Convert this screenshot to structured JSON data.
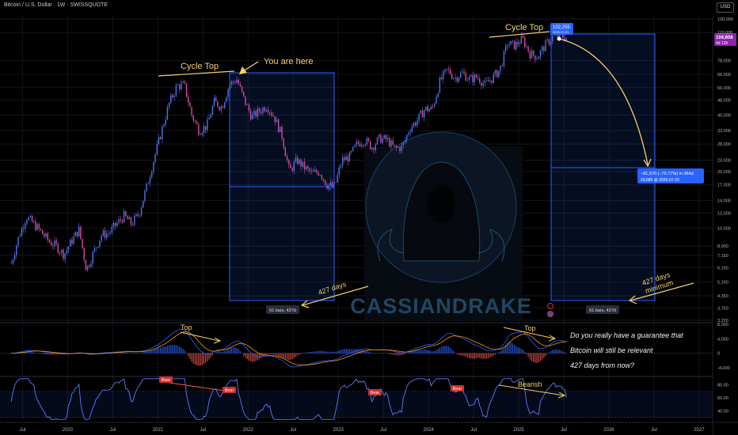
{
  "header": {
    "symbol": "Bitcoin / U.S. Dollar · 1W · SWISSQUOTE",
    "currency_button": "USD"
  },
  "colors": {
    "background": "#000000",
    "up_candle": "#4a78f0",
    "down_candle": "#d54d9c",
    "annotation": "#f5d06a",
    "range_box": "#2962ff",
    "price_tag": "#8e24aa"
  },
  "annotations": {
    "cycle_top_left": "Cycle Top",
    "you_are_here": "You are here",
    "cycle_top_right": "Cycle Top",
    "days_left": "427 days",
    "days_right_line1": "427 days",
    "days_right_line2": "minimum",
    "macd_top_left": "Top",
    "macd_top_right": "Top",
    "rsi_bearish": "Bearish",
    "watermark": "CASSIANDRAKE",
    "bars_left": "61 bars, 427d",
    "bars_right": "61 bars, 427d",
    "measure_line1": "−81,570 (−79.77%) in 364d",
    "measure_line2": "20,685 @ 2026-07-20",
    "top_tag_line1": "102,255",
    "top_tag_line2": "2025-07-21",
    "price_tag_line1": "104,608",
    "price_tag_line2": "4d 12h"
  },
  "rsi_labels": [
    "Bear",
    "Bear",
    "Bear",
    "Bear"
  ],
  "question": [
    "Do you really have a guarantee that",
    "Bitcoin will still be relevant",
    "427 days from now?"
  ],
  "chart_data": [
    {
      "type": "line",
      "name": "price",
      "yscale": "log",
      "yticks": [
        "130,000",
        "110,000",
        "78,000",
        "66,000",
        "56,000",
        "48,000",
        "40,000",
        "33,000",
        "28,000",
        "23,000",
        "20,000",
        "17,000",
        "14,000",
        "12,000",
        "10,000",
        "8,000",
        "7,150",
        "6,150",
        "5,150",
        "4,350",
        "3,750",
        "3,220"
      ],
      "x_ticks": [
        "Jul",
        "2020",
        "Jul",
        "2021",
        "Jul",
        "2022",
        "Jul",
        "2023",
        "Jul",
        "2024",
        "Jul",
        "2025",
        "Jul",
        "2026",
        "Jul",
        "2027"
      ],
      "x": [
        "2019-05",
        "2019-06",
        "2019-07",
        "2019-08",
        "2019-09",
        "2019-10",
        "2019-11",
        "2019-12",
        "2020-01",
        "2020-02",
        "2020-03",
        "2020-04",
        "2020-05",
        "2020-06",
        "2020-07",
        "2020-08",
        "2020-09",
        "2020-10",
        "2020-11",
        "2020-12",
        "2021-01",
        "2021-02",
        "2021-03",
        "2021-04",
        "2021-05",
        "2021-06",
        "2021-07",
        "2021-08",
        "2021-09",
        "2021-10",
        "2021-11",
        "2021-12",
        "2022-01",
        "2022-02",
        "2022-03",
        "2022-04",
        "2022-05",
        "2022-06",
        "2022-07",
        "2022-08",
        "2022-09",
        "2022-10",
        "2022-11",
        "2022-12",
        "2023-01",
        "2023-02",
        "2023-03",
        "2023-04",
        "2023-05",
        "2023-06",
        "2023-07",
        "2023-08",
        "2023-09",
        "2023-10",
        "2023-11",
        "2023-12",
        "2024-01",
        "2024-02",
        "2024-03",
        "2024-04",
        "2024-05",
        "2024-06",
        "2024-07",
        "2024-08",
        "2024-09",
        "2024-10",
        "2024-11",
        "2024-12",
        "2025-01",
        "2025-02",
        "2025-03",
        "2025-04",
        "2025-05",
        "2025-06",
        "2025-07"
      ],
      "y": [
        6500,
        9000,
        11500,
        10500,
        9500,
        8500,
        8000,
        7200,
        8500,
        9800,
        6000,
        7500,
        9200,
        9400,
        10500,
        11600,
        10500,
        12000,
        16500,
        23500,
        33000,
        46000,
        57000,
        58000,
        40000,
        33000,
        35000,
        47000,
        44000,
        58000,
        62000,
        48000,
        39000,
        42000,
        45000,
        39000,
        31000,
        20000,
        23000,
        21000,
        19500,
        20000,
        17000,
        16700,
        23000,
        24000,
        28000,
        29500,
        27000,
        30000,
        29500,
        26500,
        27000,
        34000,
        37500,
        43000,
        43000,
        60000,
        70000,
        63000,
        67000,
        62000,
        64000,
        58000,
        63000,
        70000,
        96000,
        94000,
        102000,
        85000,
        82000,
        94000,
        104000,
        106000,
        102255
      ],
      "ylim": [
        3220,
        130000
      ]
    },
    {
      "type": "line",
      "name": "macd",
      "yticks": [
        "8,000",
        "4,000",
        "0",
        "-4,000"
      ],
      "ylim": [
        -6000,
        8000
      ]
    },
    {
      "type": "line",
      "name": "rsi",
      "yticks": [
        "80.00",
        "60.00",
        "40.00"
      ],
      "ylim": [
        25,
        90
      ]
    }
  ]
}
